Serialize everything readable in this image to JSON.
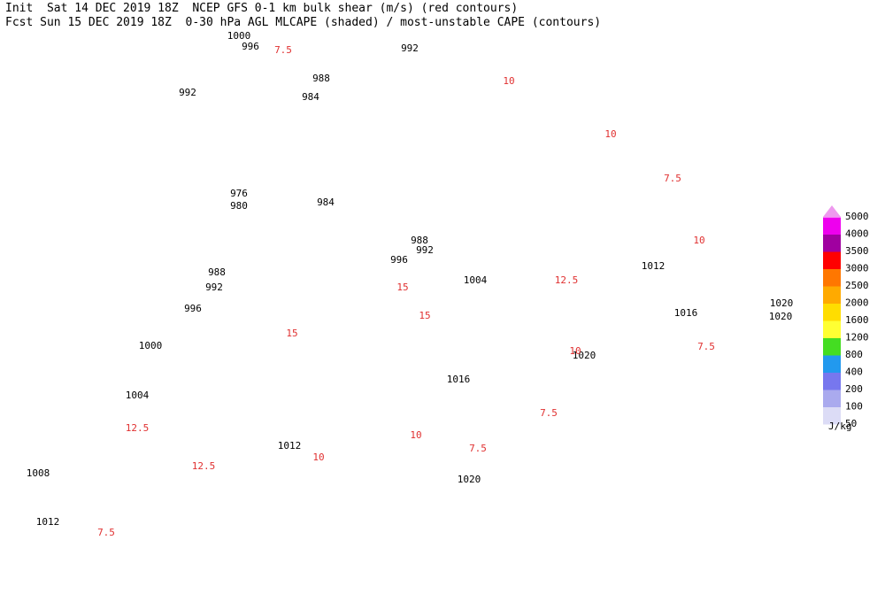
{
  "header": {
    "line1": "Init  Sat 14 DEC 2019 18Z  NCEP GFS 0-1 km bulk shear (m/s) (red contours)",
    "line2": "Fcst Sun 15 DEC 2019 18Z  0-30 hPa AGL MLCAPE (shaded) / most-unstable CAPE (contours)"
  },
  "isobar_labels": [
    1000,
    996,
    992,
    992,
    988,
    984,
    976,
    980,
    984,
    988,
    992,
    996,
    988,
    992,
    996,
    1004,
    1000,
    1012,
    1016,
    1020,
    1020,
    1020,
    1016,
    1004,
    1012,
    1008,
    1020,
    1012
  ],
  "shear_labels": [
    "7.5",
    "10",
    "12.5",
    "15",
    "10",
    "7.5",
    "7.5",
    "10",
    "12.5",
    "10",
    "7.5",
    "15",
    "10",
    "12.5",
    "7.5",
    "10",
    "15",
    "7.5"
  ],
  "legend": {
    "values": [
      5000,
      4000,
      3500,
      3000,
      2500,
      2000,
      1600,
      1200,
      800,
      400,
      200,
      100,
      50
    ],
    "colors": [
      "#ee99ee",
      "#ee00ee",
      "#a000a0",
      "#ff0000",
      "#ff7700",
      "#ffaa00",
      "#ffdd00",
      "#ffff33",
      "#44dd22",
      "#2299ee",
      "#7777ee",
      "#aaaaee",
      "#dcdcf6"
    ],
    "unit": "J/kg"
  },
  "colors": {
    "isobar": "#000000",
    "shear": "#e03030",
    "coast": "#aaaaaa"
  }
}
